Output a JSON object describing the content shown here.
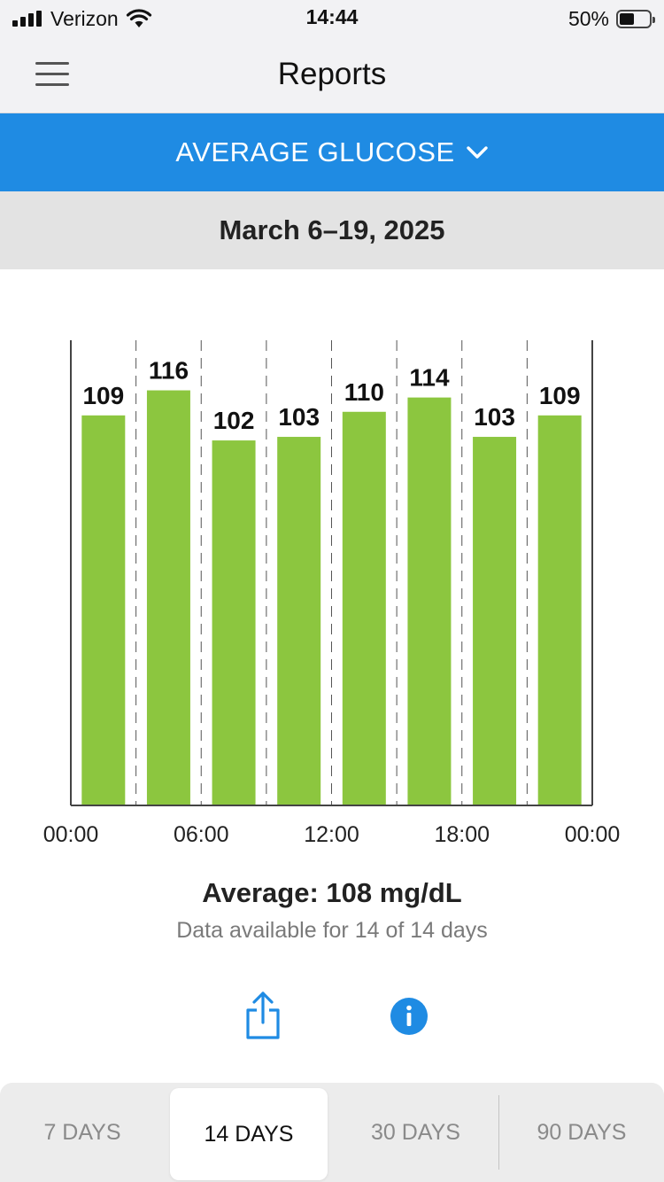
{
  "status_bar": {
    "carrier": "Verizon",
    "time": "14:44",
    "battery_percent": "50%",
    "battery_level": 0.5
  },
  "nav": {
    "title": "Reports",
    "menu_icon": "hamburger-menu-icon"
  },
  "report_selector": {
    "label": "AVERAGE GLUCOSE",
    "icon": "chevron-down-icon"
  },
  "date_range": "March 6–19, 2025",
  "chart_data": {
    "type": "bar",
    "title": "",
    "xlabel": "",
    "ylabel": "",
    "x_ticks": [
      "00:00",
      "06:00",
      "12:00",
      "18:00",
      "00:00"
    ],
    "values": [
      109,
      116,
      102,
      103,
      110,
      114,
      103,
      109
    ],
    "bar_color": "#8cc63f",
    "ylim": [
      0,
      130
    ],
    "grid": "vertical dashed"
  },
  "summary": {
    "average": "Average: 108 mg/dL",
    "availability": "Data available for 14 of 14 days"
  },
  "actions": {
    "share_icon": "share-icon",
    "info_icon": "info-icon",
    "accent": "#1f8be3"
  },
  "period_tabs": [
    {
      "label": "7 DAYS",
      "selected": false
    },
    {
      "label": "14 DAYS",
      "selected": true
    },
    {
      "label": "30 DAYS",
      "selected": false
    },
    {
      "label": "90 DAYS",
      "selected": false
    }
  ]
}
